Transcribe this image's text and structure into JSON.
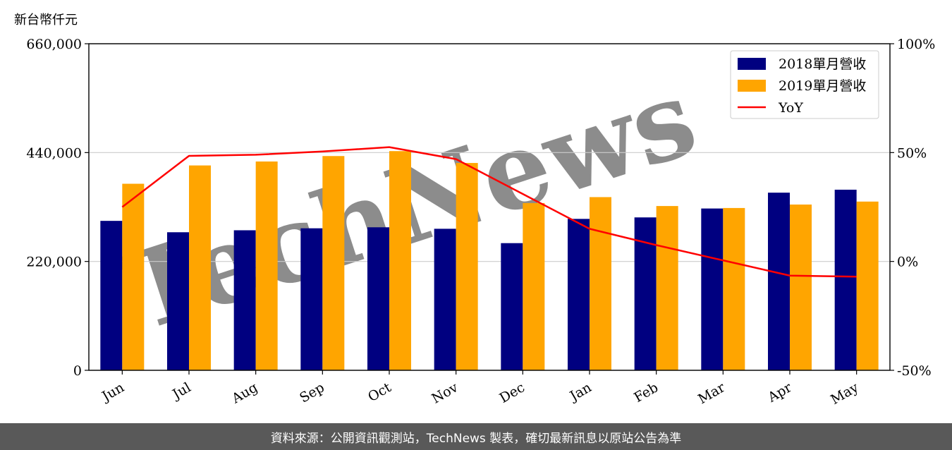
{
  "unit_label": "新台幣仟元",
  "footer": "資料來源：公開資訊觀測站，TechNews 製表，確切最新訊息以原站公告為準",
  "watermark": "TechNews",
  "colors": {
    "series_2018": "#000080",
    "series_2019": "#FFA500",
    "yoy": "#FF0000",
    "footer_bg": "#595959",
    "watermark": "#f2c2c2"
  },
  "chart_data": {
    "type": "bar",
    "categories": [
      "Jun",
      "Jul",
      "Aug",
      "Sep",
      "Oct",
      "Nov",
      "Dec",
      "Jan",
      "Feb",
      "Mar",
      "Apr",
      "May"
    ],
    "series": [
      {
        "name": "2018單月營收",
        "values": [
          302000,
          279000,
          283000,
          287000,
          289000,
          286000,
          257000,
          306000,
          309000,
          327000,
          359000,
          365000
        ]
      },
      {
        "name": "2019單月營收",
        "values": [
          377000,
          414000,
          422000,
          433000,
          443000,
          419000,
          338000,
          350000,
          332000,
          328000,
          335000,
          341000
        ]
      },
      {
        "name": "YoY",
        "type": "line",
        "axis": "right",
        "values": [
          25,
          48.5,
          49,
          50.5,
          52.5,
          47,
          31,
          15,
          7.5,
          0.5,
          -6.5,
          -7
        ]
      }
    ],
    "y_left": {
      "ylim": [
        0,
        660000
      ],
      "ticks": [
        "0",
        "220,000",
        "440,000",
        "660,000"
      ]
    },
    "y_right": {
      "ylim": [
        -50,
        100
      ],
      "ticks": [
        "-50%",
        "0%",
        "50%",
        "100%"
      ]
    },
    "grid": "horizontal",
    "legend": "top-right"
  }
}
